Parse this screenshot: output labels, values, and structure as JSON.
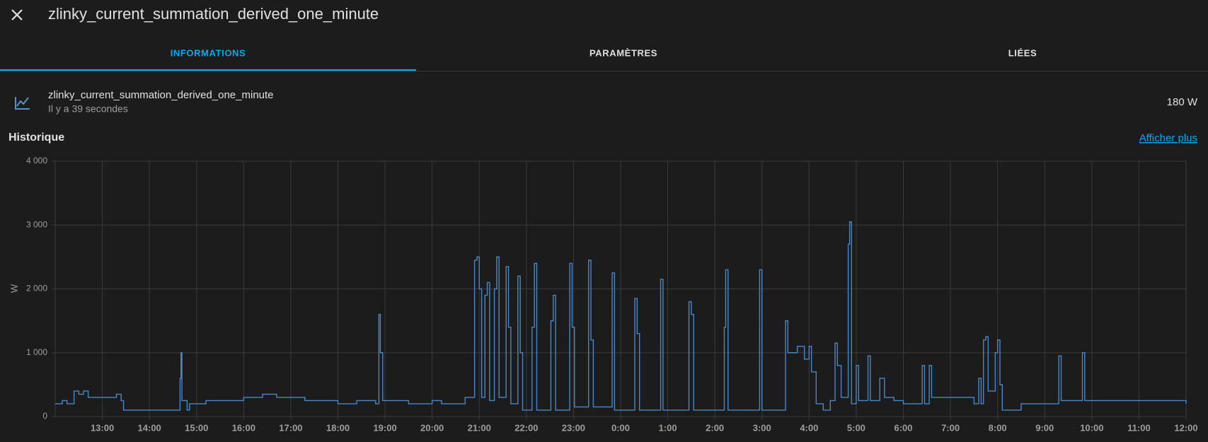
{
  "header": {
    "title": "zlinky_current_summation_derived_one_minute"
  },
  "tabs": [
    "INFORMATIONS",
    "PARAMÈTRES",
    "LIÉES"
  ],
  "entity": {
    "name": "zlinky_current_summation_derived_one_minute",
    "last_changed": "Il y a 39 secondes",
    "state": "180 W"
  },
  "history": {
    "title": "Historique",
    "link": "Afficher plus"
  },
  "chart_data": {
    "type": "line",
    "step": true,
    "color": "#4a86c5",
    "grid": true,
    "ylabel": "W",
    "x": [
      12.0,
      12.15,
      12.25,
      12.4,
      12.5,
      12.6,
      12.7,
      13.0,
      13.3,
      13.4,
      13.45,
      14.6,
      14.65,
      14.67,
      14.69,
      14.8,
      14.85,
      15.2,
      16.0,
      16.4,
      16.7,
      17.3,
      18.0,
      18.4,
      18.8,
      18.87,
      18.9,
      18.95,
      19.5,
      20.0,
      20.2,
      20.7,
      20.9,
      20.95,
      21.0,
      21.05,
      21.12,
      21.17,
      21.22,
      21.32,
      21.37,
      21.42,
      21.57,
      21.62,
      21.67,
      21.82,
      21.87,
      21.92,
      22.12,
      22.17,
      22.22,
      22.52,
      22.57,
      22.62,
      22.92,
      22.97,
      23.02,
      23.32,
      23.37,
      23.42,
      23.82,
      23.87,
      24.3,
      24.35,
      24.4,
      24.85,
      24.9,
      25.45,
      25.5,
      25.55,
      26.2,
      26.23,
      26.28,
      26.95,
      27.0,
      27.5,
      27.55,
      27.75,
      27.9,
      28.0,
      28.05,
      28.15,
      28.3,
      28.45,
      28.55,
      28.6,
      28.68,
      28.83,
      28.86,
      28.9,
      29.0,
      29.05,
      29.25,
      29.3,
      29.5,
      29.6,
      29.8,
      30.0,
      30.4,
      30.45,
      30.55,
      30.6,
      31.0,
      31.5,
      31.6,
      31.65,
      31.7,
      31.75,
      31.8,
      31.95,
      32.0,
      32.05,
      32.1,
      32.5,
      33.3,
      33.35,
      33.8,
      33.85,
      36.0
    ],
    "values": [
      200,
      250,
      200,
      400,
      350,
      400,
      300,
      300,
      350,
      250,
      100,
      100,
      600,
      1000,
      250,
      100,
      200,
      250,
      300,
      350,
      300,
      250,
      200,
      250,
      200,
      1600,
      1000,
      250,
      200,
      250,
      200,
      300,
      2450,
      2500,
      2000,
      300,
      1900,
      2100,
      250,
      2000,
      2500,
      300,
      2350,
      1400,
      200,
      2200,
      1000,
      100,
      1400,
      2400,
      100,
      1500,
      1900,
      100,
      2400,
      1400,
      150,
      2450,
      1200,
      150,
      2250,
      100,
      1850,
      1300,
      100,
      2150,
      100,
      1800,
      1600,
      100,
      1400,
      2300,
      100,
      2300,
      100,
      1500,
      1000,
      1100,
      900,
      1100,
      700,
      200,
      100,
      250,
      1150,
      800,
      300,
      2700,
      3050,
      200,
      800,
      250,
      950,
      250,
      600,
      300,
      250,
      200,
      800,
      200,
      800,
      300,
      300,
      200,
      600,
      200,
      1200,
      1250,
      400,
      1000,
      1200,
      500,
      100,
      200,
      950,
      250,
      1000,
      250,
      200
    ],
    "xlim": [
      12,
      36
    ],
    "xticks": [
      {
        "value": 13,
        "label": "13:00"
      },
      {
        "value": 14,
        "label": "14:00"
      },
      {
        "value": 15,
        "label": "15:00"
      },
      {
        "value": 16,
        "label": "16:00"
      },
      {
        "value": 17,
        "label": "17:00"
      },
      {
        "value": 18,
        "label": "18:00"
      },
      {
        "value": 19,
        "label": "19:00"
      },
      {
        "value": 20,
        "label": "20:00"
      },
      {
        "value": 21,
        "label": "21:00"
      },
      {
        "value": 22,
        "label": "22:00"
      },
      {
        "value": 23,
        "label": "23:00"
      },
      {
        "value": 24,
        "label": "0:00"
      },
      {
        "value": 25,
        "label": "1:00"
      },
      {
        "value": 26,
        "label": "2:00"
      },
      {
        "value": 27,
        "label": "3:00"
      },
      {
        "value": 28,
        "label": "4:00"
      },
      {
        "value": 29,
        "label": "5:00"
      },
      {
        "value": 30,
        "label": "6:00"
      },
      {
        "value": 31,
        "label": "7:00"
      },
      {
        "value": 32,
        "label": "8:00"
      },
      {
        "value": 33,
        "label": "9:00"
      },
      {
        "value": 34,
        "label": "10:00"
      },
      {
        "value": 35,
        "label": "11:00"
      },
      {
        "value": 36,
        "label": "12:00"
      }
    ],
    "ylim": [
      0,
      4000
    ],
    "yticks": [
      0,
      {
        "value": 1000,
        "label": "1 000"
      },
      {
        "value": 2000,
        "label": "2 000"
      },
      {
        "value": 3000,
        "label": "3 000"
      },
      {
        "value": 4000,
        "label": "4 000"
      }
    ]
  }
}
